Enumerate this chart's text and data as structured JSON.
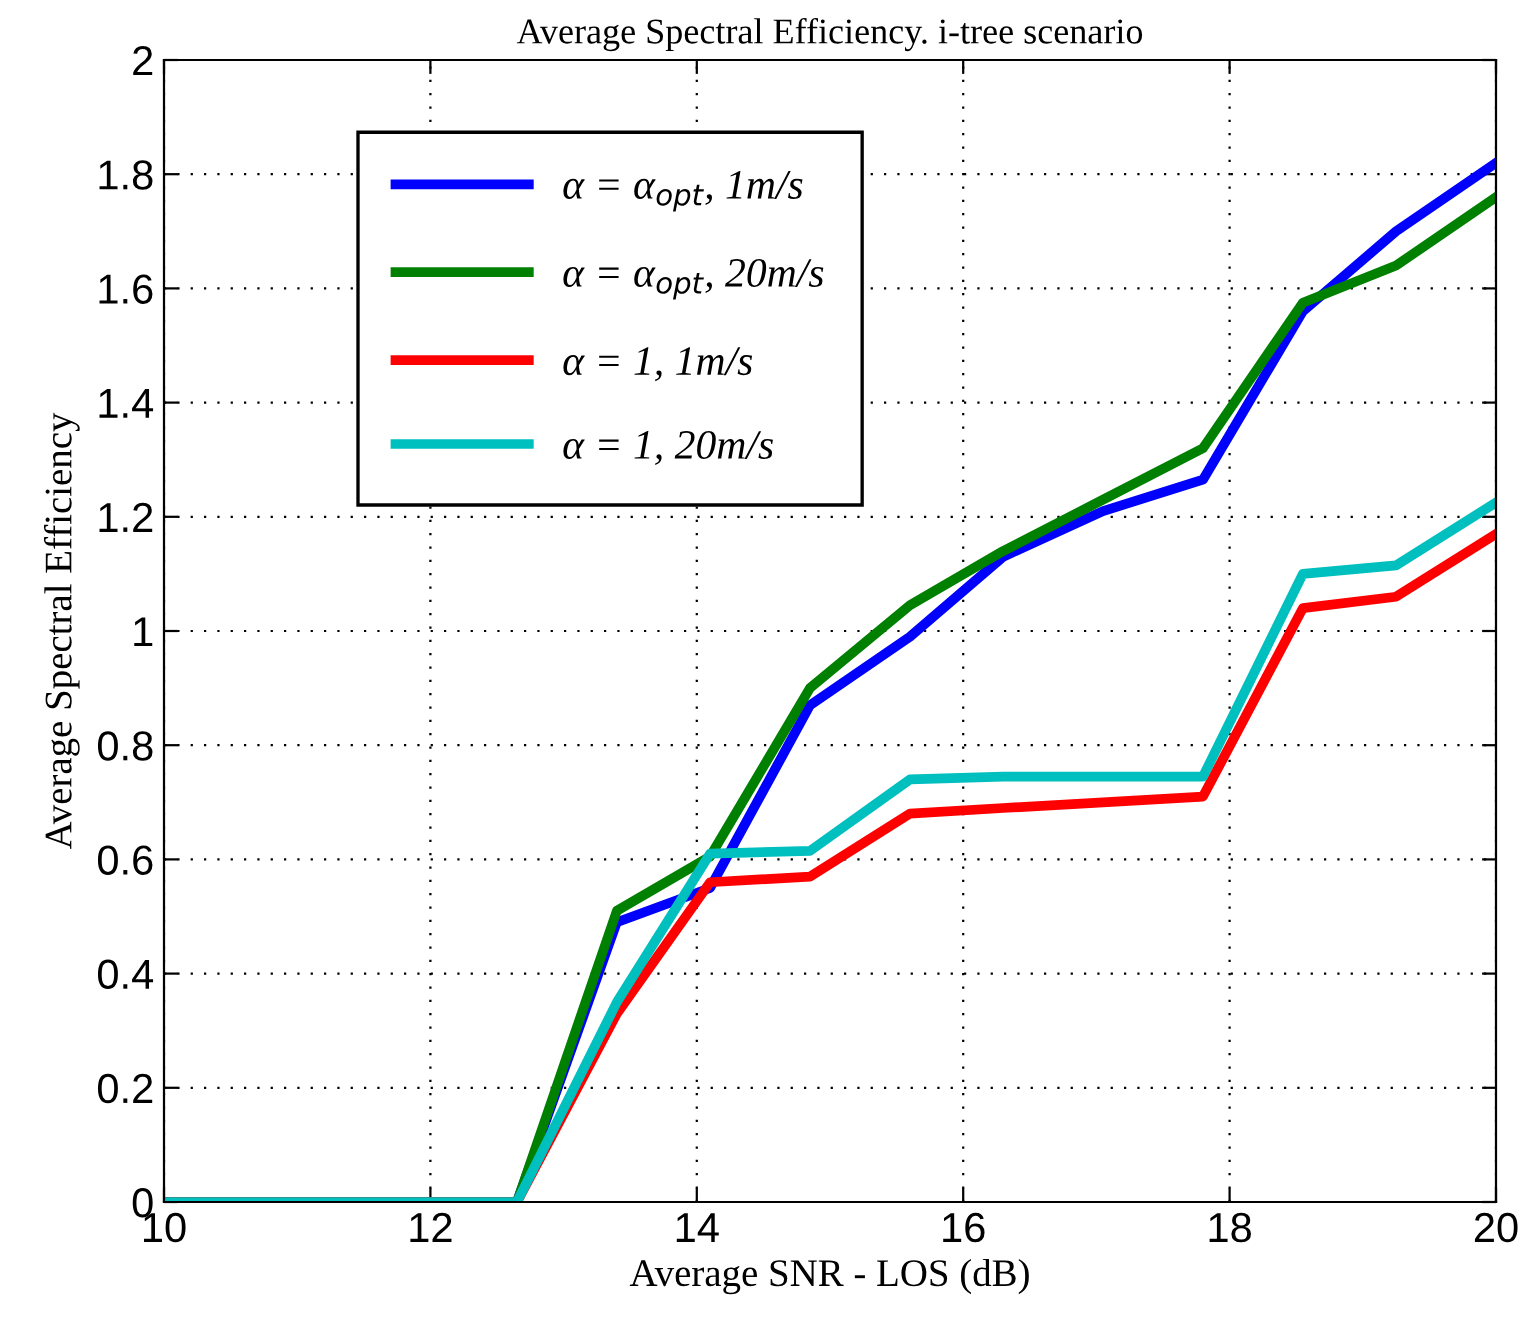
{
  "chart_data": {
    "type": "line",
    "title": "Average Spectral Efficiency. i-tree scenario",
    "xlabel": "Average SNR - LOS (dB)",
    "ylabel": "Average Spectral Efficiency",
    "x": [
      10,
      12.65,
      13.4,
      14.1,
      14.85,
      15.6,
      16.3,
      17.05,
      17.8,
      18.55,
      19.25,
      20
    ],
    "series": [
      {
        "name": "α = α$_{opt}$, 1m/s",
        "color": "#0000ff",
        "values": [
          0,
          0,
          0.49,
          0.55,
          0.87,
          0.99,
          1.13,
          1.21,
          1.265,
          1.56,
          1.7,
          1.82
        ]
      },
      {
        "name": "α = α$_{opt}$, 20m/s",
        "color": "#008000",
        "values": [
          0,
          0,
          0.51,
          0.605,
          0.9,
          1.045,
          1.14,
          1.23,
          1.32,
          1.575,
          1.64,
          1.76
        ]
      },
      {
        "name": "α = 1, 1m/s",
        "color": "#ff0000",
        "values": [
          0,
          0,
          0.33,
          0.56,
          0.57,
          0.68,
          0.69,
          0.7,
          0.71,
          1.04,
          1.06,
          1.17
        ]
      },
      {
        "name": "α = 1, 20m/s",
        "color": "#00bfbf",
        "values": [
          0,
          0,
          0.35,
          0.61,
          0.615,
          0.74,
          0.745,
          0.745,
          0.745,
          1.1,
          1.115,
          1.225
        ]
      }
    ],
    "xlim": [
      10,
      20
    ],
    "xticks": [
      10,
      12,
      14,
      16,
      18,
      20
    ],
    "ylim": [
      0,
      2
    ],
    "yticks": [
      0,
      0.2,
      0.4,
      0.6,
      0.8,
      1,
      1.2,
      1.4,
      1.6,
      1.8,
      2
    ],
    "grid": true,
    "legend": "top left",
    "marker": "none",
    "line_style": "solid"
  }
}
